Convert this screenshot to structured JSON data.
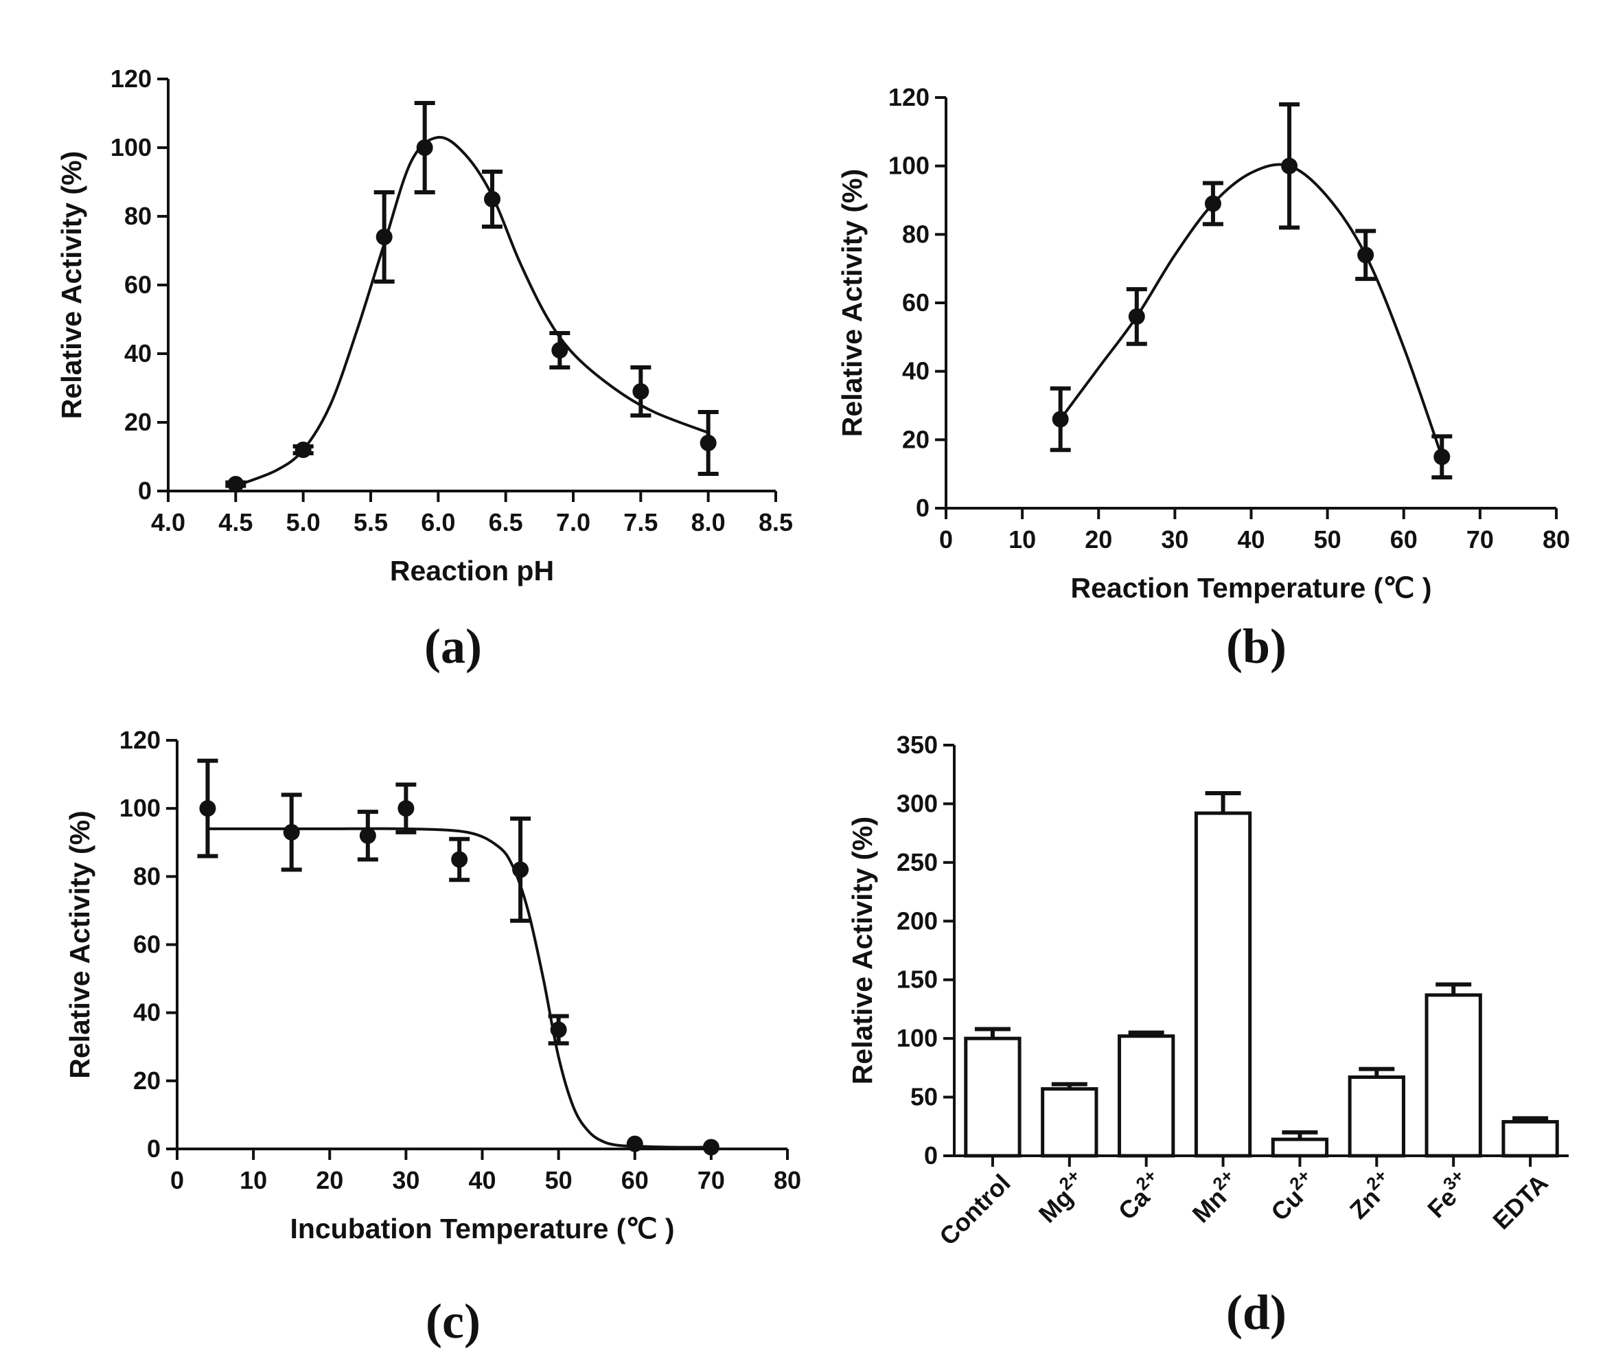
{
  "chart_data": [
    {
      "panel_label": "(a)",
      "type": "scatter",
      "xlabel": "Reaction pH",
      "ylabel": "Relative Activity (%)",
      "xlim": [
        4.0,
        8.5
      ],
      "ylim": [
        0,
        120
      ],
      "x_ticks": [
        "4.0",
        "4.5",
        "5.0",
        "5.5",
        "6.0",
        "6.5",
        "7.0",
        "7.5",
        "8.0",
        "8.5"
      ],
      "y_ticks": [
        "0",
        "20",
        "40",
        "60",
        "80",
        "100",
        "120"
      ],
      "series": [
        {
          "x": [
            4.5,
            5.0,
            5.6,
            5.9,
            6.4,
            6.9,
            7.5,
            8.0
          ],
          "y": [
            2,
            12,
            74,
            100,
            85,
            41,
            29,
            14
          ],
          "error": [
            0.5,
            1,
            13,
            13,
            8,
            5,
            7,
            9
          ]
        }
      ],
      "fit": {
        "x": [
          4.5,
          4.8,
          5.0,
          5.2,
          5.4,
          5.6,
          5.8,
          6.0,
          6.2,
          6.4,
          6.6,
          6.8,
          7.0,
          7.3,
          7.6,
          8.0
        ],
        "y": [
          1.5,
          6,
          12,
          25,
          47,
          72,
          96,
          103,
          98,
          86,
          67,
          51,
          40,
          30,
          23,
          17
        ]
      },
      "grid": false
    },
    {
      "panel_label": "(b)",
      "type": "line",
      "xlabel": "Reaction Temperature (℃ )",
      "ylabel": "Relative Activity (%)",
      "xlim": [
        0,
        80
      ],
      "ylim": [
        0,
        120
      ],
      "x_ticks": [
        "0",
        "10",
        "20",
        "30",
        "40",
        "50",
        "60",
        "70",
        "80"
      ],
      "y_ticks": [
        "0",
        "20",
        "40",
        "60",
        "80",
        "100",
        "120"
      ],
      "series": [
        {
          "x": [
            15,
            25,
            35,
            45,
            55,
            65
          ],
          "y": [
            26,
            56,
            89,
            100,
            74,
            15
          ],
          "error": [
            9,
            8,
            6,
            18,
            7,
            6
          ]
        }
      ],
      "fit": {
        "x": [
          15,
          20,
          25,
          30,
          35,
          40,
          45,
          50,
          55,
          60,
          65
        ],
        "y": [
          26,
          41,
          56,
          74,
          89,
          98,
          100,
          91,
          74,
          47,
          15
        ]
      },
      "grid": false
    },
    {
      "panel_label": "(c)",
      "type": "scatter",
      "xlabel": "Incubation Temperature (℃ )",
      "ylabel": "Relative Activity (%)",
      "xlim": [
        0,
        80
      ],
      "ylim": [
        0,
        120
      ],
      "x_ticks": [
        "0",
        "10",
        "20",
        "30",
        "40",
        "50",
        "60",
        "70",
        "80"
      ],
      "y_ticks": [
        "0",
        "20",
        "40",
        "60",
        "80",
        "100",
        "120"
      ],
      "series": [
        {
          "x": [
            4,
            15,
            25,
            30,
            37,
            45,
            50,
            60,
            70
          ],
          "y": [
            100,
            93,
            92,
            100,
            85,
            82,
            35,
            1.5,
            0.5
          ],
          "error": [
            14,
            11,
            7,
            7,
            6,
            15,
            4,
            0,
            0
          ]
        }
      ],
      "fit": {
        "x": [
          4,
          10,
          20,
          30,
          38,
          42,
          44,
          46,
          48,
          50,
          52,
          54,
          56,
          58,
          60,
          65,
          70
        ],
        "y": [
          94,
          94,
          94,
          94,
          93,
          89,
          83,
          70,
          50,
          27,
          12,
          5,
          2,
          1,
          0.8,
          0.5,
          0.5
        ]
      },
      "grid": false
    },
    {
      "panel_label": "(d)",
      "type": "bar",
      "xlabel": "",
      "ylabel": "Relative Activity (%)",
      "ylim": [
        0,
        350
      ],
      "y_ticks": [
        "0",
        "50",
        "100",
        "150",
        "200",
        "250",
        "300",
        "350"
      ],
      "categories": [
        {
          "base": "Control",
          "sup": ""
        },
        {
          "base": "Mg",
          "sup": "2+"
        },
        {
          "base": "Ca",
          "sup": "2+"
        },
        {
          "base": "Mn",
          "sup": "2+"
        },
        {
          "base": "Cu",
          "sup": "2+"
        },
        {
          "base": "Zn",
          "sup": "2+"
        },
        {
          "base": "Fe",
          "sup": "3+"
        },
        {
          "base": "EDTA",
          "sup": ""
        }
      ],
      "values": [
        100,
        57,
        102,
        292,
        14,
        67,
        137,
        29
      ],
      "error": [
        8,
        4,
        3,
        17,
        6,
        7,
        9,
        3
      ],
      "grid": false
    }
  ]
}
